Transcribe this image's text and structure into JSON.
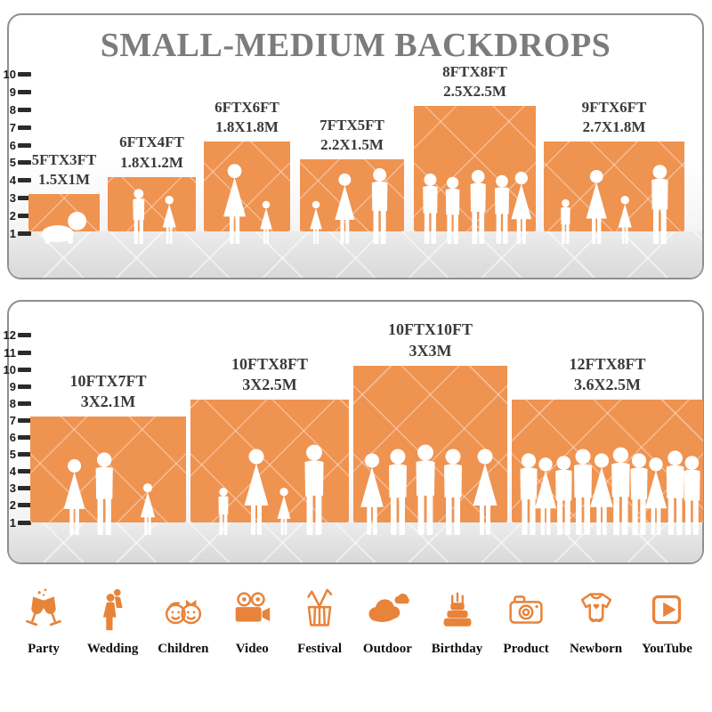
{
  "title": {
    "text": "SMALL-MEDIUM BACKDROPS",
    "color": "#7c7c7c"
  },
  "colors": {
    "backdrop_orange": "#EF9351",
    "icon_orange": "#E8833A",
    "label_dark": "#3a3a3a",
    "panel_border": "#8f8f8f",
    "ground_gray": "#dcdcdc",
    "title_gray": "#7c7c7c"
  },
  "chart_data": [
    {
      "type": "bar",
      "title": "SMALL-MEDIUM BACKDROPS",
      "xlabel": "",
      "ylabel": "",
      "ylim": [
        0,
        10
      ],
      "yticks": [
        1,
        2,
        3,
        4,
        5,
        6,
        7,
        8,
        9,
        10
      ],
      "grid": false,
      "legend": "none",
      "bar_color": "#EF9351",
      "categories": [
        "5FTX3FT",
        "6FTX4FT",
        "6FTX6FT",
        "7FTX5FT",
        "8FTX8FT",
        "9FTX6FT"
      ],
      "metric_labels": [
        "1.5X1M",
        "1.8X1.2M",
        "1.8X1.8M",
        "2.2X1.5M",
        "2.5X2.5M",
        "2.7X1.8M"
      ],
      "values_height_ft": [
        3,
        4,
        6,
        5,
        8,
        6
      ],
      "values_width_ft": [
        5,
        6,
        6,
        7,
        8,
        9
      ]
    },
    {
      "type": "bar",
      "title": "",
      "xlabel": "",
      "ylabel": "",
      "ylim": [
        0,
        12
      ],
      "yticks": [
        1,
        2,
        3,
        4,
        5,
        6,
        7,
        8,
        9,
        10,
        11,
        12
      ],
      "grid": false,
      "legend": "none",
      "bar_color": "#EF9351",
      "categories": [
        "10FTX7FT",
        "10FTX8FT",
        "10FTX10FT",
        "12FTX8FT"
      ],
      "metric_labels": [
        "3X2.1M",
        "3X2.5M",
        "3X3M",
        "3.6X2.5M"
      ],
      "values_height_ft": [
        7,
        8,
        10,
        8
      ],
      "values_width_ft": [
        10,
        10,
        10,
        12
      ]
    }
  ],
  "category_icons": [
    {
      "icon": "party-icon",
      "label": "Party"
    },
    {
      "icon": "wedding-icon",
      "label": "Wedding"
    },
    {
      "icon": "children-icon",
      "label": "Children"
    },
    {
      "icon": "video-icon",
      "label": "Video"
    },
    {
      "icon": "festival-icon",
      "label": "Festival"
    },
    {
      "icon": "outdoor-icon",
      "label": "Outdoor"
    },
    {
      "icon": "birthday-icon",
      "label": "Birthday"
    },
    {
      "icon": "product-icon",
      "label": "Product"
    },
    {
      "icon": "newborn-icon",
      "label": "Newborn"
    },
    {
      "icon": "youtube-icon",
      "label": "YouTube"
    }
  ]
}
